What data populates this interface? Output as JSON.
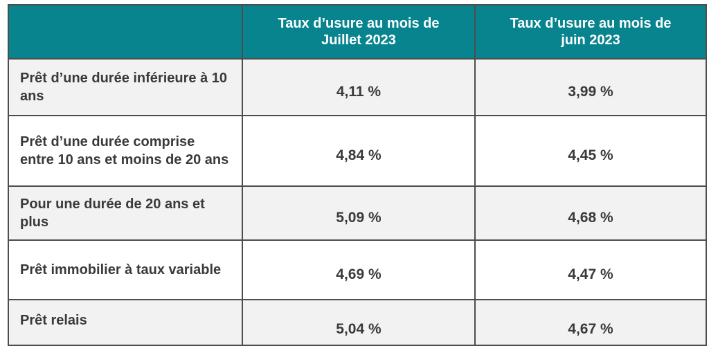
{
  "table": {
    "headers": [
      "",
      "Taux d’usure au mois de Juillet 2023",
      "Taux d’usure au mois de juin 2023"
    ],
    "rows": [
      {
        "label": "Prêt d’une durée inférieure à 10 ans",
        "juillet": "4,11 %",
        "juin": "3,99 %"
      },
      {
        "label": "Prêt d’une durée comprise entre 10 ans et moins de 20 ans",
        "juillet": "4,84 %",
        "juin": "4,45 %"
      },
      {
        "label": "Pour une durée de 20 ans et plus",
        "juillet": "5,09 %",
        "juin": "4,68 %"
      },
      {
        "label": "Prêt immobilier à taux variable",
        "juillet": "4,69 %",
        "juin": "4,47 %"
      },
      {
        "label": "Prêt relais",
        "juillet": "5,04 %",
        "juin": "4,67 %"
      }
    ]
  },
  "colors": {
    "header_bg": "#08848f",
    "header_text": "#ffffff",
    "row_alt_bg": "#f2f2f2",
    "text": "#3a3a3a",
    "border": "#4d4d4d"
  }
}
